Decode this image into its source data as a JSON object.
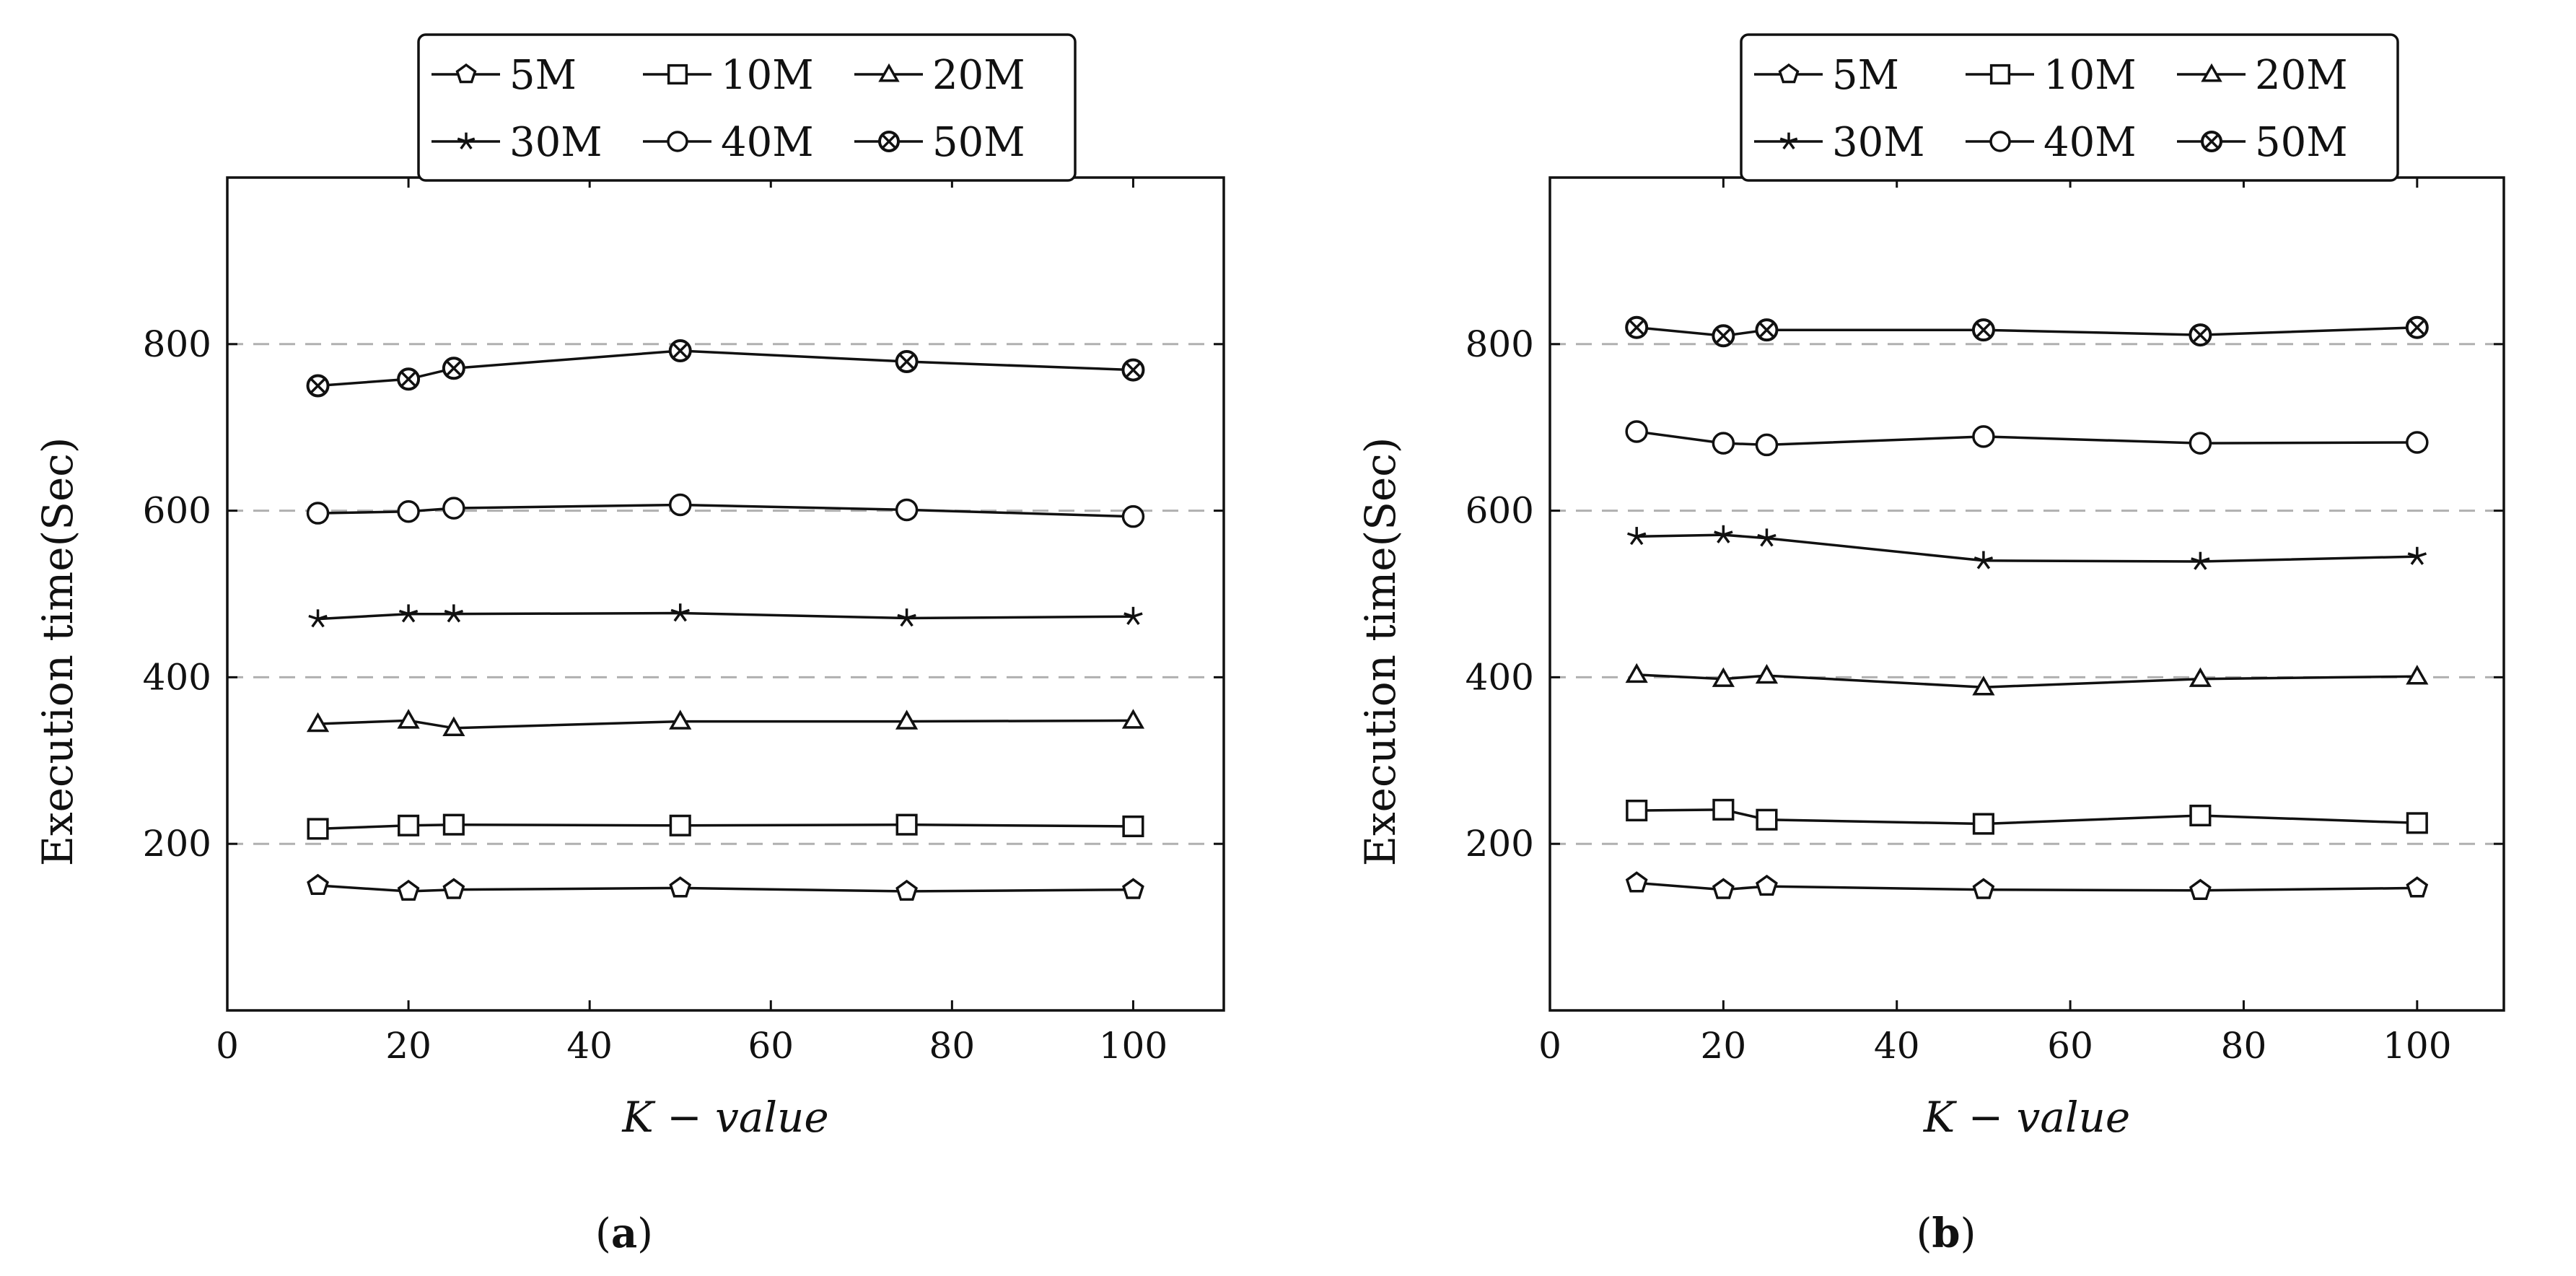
{
  "chart_data": [
    {
      "type": "line",
      "panel_label": "a",
      "xlabel": "K − value",
      "ylabel": "Execution time(Sec)",
      "xlim": [
        0,
        110
      ],
      "ylim": [
        0,
        1000
      ],
      "x_ticks": [
        0,
        20,
        40,
        60,
        80,
        100
      ],
      "y_ticks": [
        200,
        400,
        600,
        800
      ],
      "grid": "horizontal-dashed",
      "legend_position": "top-center",
      "x": [
        10,
        20,
        25,
        50,
        75,
        100
      ],
      "series": [
        {
          "name": "5M",
          "marker": "pentagon",
          "values": [
            150,
            143,
            145,
            147,
            143,
            145
          ]
        },
        {
          "name": "10M",
          "marker": "square",
          "values": [
            218,
            222,
            223,
            222,
            223,
            221
          ]
        },
        {
          "name": "20M",
          "marker": "triangle",
          "values": [
            344,
            348,
            339,
            347,
            347,
            348
          ]
        },
        {
          "name": "30M",
          "marker": "star",
          "values": [
            470,
            476,
            476,
            477,
            471,
            473
          ]
        },
        {
          "name": "40M",
          "marker": "circle",
          "values": [
            597,
            599,
            603,
            607,
            601,
            593
          ]
        },
        {
          "name": "50M",
          "marker": "otimes",
          "values": [
            750,
            758,
            771,
            792,
            779,
            769
          ]
        }
      ]
    },
    {
      "type": "line",
      "panel_label": "b",
      "xlabel": "K − value",
      "ylabel": "Execution time(Sec)",
      "xlim": [
        0,
        110
      ],
      "ylim": [
        0,
        1000
      ],
      "x_ticks": [
        0,
        20,
        40,
        60,
        80,
        100
      ],
      "y_ticks": [
        200,
        400,
        600,
        800
      ],
      "grid": "horizontal-dashed",
      "legend_position": "top-center",
      "x": [
        10,
        20,
        25,
        50,
        75,
        100
      ],
      "series": [
        {
          "name": "5M",
          "marker": "pentagon",
          "values": [
            153,
            145,
            149,
            145,
            144,
            147
          ]
        },
        {
          "name": "10M",
          "marker": "square",
          "values": [
            240,
            241,
            229,
            224,
            234,
            225
          ]
        },
        {
          "name": "20M",
          "marker": "triangle",
          "values": [
            403,
            398,
            402,
            388,
            398,
            401
          ]
        },
        {
          "name": "30M",
          "marker": "star",
          "values": [
            569,
            571,
            567,
            540,
            539,
            545
          ]
        },
        {
          "name": "40M",
          "marker": "circle",
          "values": [
            695,
            681,
            679,
            689,
            681,
            682
          ]
        },
        {
          "name": "50M",
          "marker": "otimes",
          "values": [
            820,
            810,
            817,
            817,
            811,
            820
          ]
        }
      ]
    }
  ]
}
